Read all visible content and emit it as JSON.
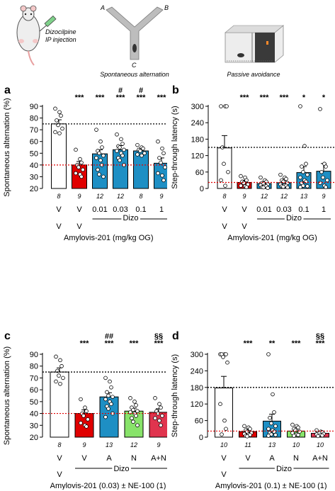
{
  "header": {
    "injection_label_line1": "Dizocilpine",
    "injection_label_line2": "IP injection",
    "maze_arm_a": "A",
    "maze_arm_b": "B",
    "maze_arm_c": "C",
    "maze_caption": "Spontaneous alternation",
    "box_caption": "Passive avoidance"
  },
  "colors": {
    "white_bar": "#ffffff",
    "red_bar": "#e00000",
    "blue_bar": "#1e8fc4",
    "green_bar": "#88e36a",
    "pink_bar": "#e0344e",
    "ref_line_red": "#e00000",
    "ref_line_black": "#000000"
  },
  "chart_data": [
    {
      "panel_label": "a",
      "type": "bar",
      "ylabel": "Spontaneous alternation (%)",
      "ylim": [
        20,
        90
      ],
      "yticks": [
        20,
        30,
        40,
        50,
        60,
        70,
        80,
        90
      ],
      "ref_black": 75,
      "ref_red": 40,
      "categories": [
        "V",
        "V",
        "0.01",
        "0.03",
        "0.1",
        "1"
      ],
      "top_row": [
        "V",
        "V",
        "",
        "",
        "",
        ""
      ],
      "n": [
        "8",
        "9",
        "12",
        "12",
        "8",
        "9"
      ],
      "values": [
        75,
        40,
        49.5,
        53,
        52,
        41.5
      ],
      "errors": [
        3.5,
        3,
        3.5,
        3.5,
        2,
        4.5
      ],
      "colors": [
        "white_bar",
        "red_bar",
        "blue_bar",
        "blue_bar",
        "blue_bar",
        "blue_bar"
      ],
      "sig_line1": [
        "",
        "",
        "",
        "#",
        "#",
        ""
      ],
      "sig_line2": [
        "",
        "***",
        "***",
        "***",
        "***",
        "***"
      ],
      "points": [
        [
          88,
          85,
          82,
          78,
          74,
          71,
          68,
          67
        ],
        [
          53,
          45,
          42,
          40,
          38,
          36,
          33,
          32,
          30
        ],
        [
          70,
          60,
          55,
          52,
          50,
          48,
          46,
          44,
          40,
          36,
          32,
          30
        ],
        [
          66,
          62,
          58,
          56,
          55,
          53,
          52,
          50,
          48,
          46,
          44,
          40
        ],
        [
          57,
          55,
          54,
          53,
          52,
          50,
          49,
          48
        ],
        [
          60,
          54,
          50,
          46,
          42,
          38,
          33,
          31,
          27
        ]
      ],
      "group_label": "Dizo",
      "axis_title": "Amylovis-201 (mg/kg OG)"
    },
    {
      "panel_label": "b",
      "type": "bar",
      "ylabel": "Step-through latency (s)",
      "ylim": [
        0,
        300
      ],
      "yticks": [
        0,
        60,
        120,
        180,
        240,
        300
      ],
      "ref_black": 150,
      "ref_red": 22,
      "categories": [
        "V",
        "V",
        "0.01",
        "0.03",
        "0.1",
        "1"
      ],
      "top_row": [
        "V",
        "V",
        "",
        "",
        "",
        ""
      ],
      "n": [
        "8",
        "9",
        "12",
        "12",
        "13",
        "9"
      ],
      "values": [
        148,
        22,
        18,
        21,
        58,
        63
      ],
      "errors": [
        45,
        8,
        6,
        7,
        22,
        28
      ],
      "colors": [
        "white_bar",
        "red_bar",
        "blue_bar",
        "blue_bar",
        "blue_bar",
        "blue_bar"
      ],
      "sig_line1": [
        "",
        "",
        "",
        "",
        "",
        ""
      ],
      "sig_line2": [
        "",
        "***",
        "***",
        "***",
        "*",
        "*"
      ],
      "points": [
        [
          300,
          300,
          300,
          150,
          90,
          60,
          30,
          10
        ],
        [
          45,
          40,
          30,
          25,
          20,
          15,
          10,
          8,
          5
        ],
        [
          40,
          30,
          25,
          20,
          18,
          15,
          12,
          10,
          8,
          5,
          4,
          2
        ],
        [
          50,
          40,
          35,
          30,
          25,
          20,
          15,
          12,
          10,
          8,
          6,
          4
        ],
        [
          300,
          155,
          90,
          80,
          60,
          50,
          40,
          30,
          25,
          20,
          10,
          8,
          5
        ],
        [
          290,
          90,
          80,
          60,
          40,
          30,
          20,
          10,
          5
        ]
      ],
      "group_label": "Dizo",
      "axis_title": "Amylovis-201 (mg/kg OG)"
    },
    {
      "panel_label": "c",
      "type": "bar",
      "ylabel": "Spontaneous alternation (%)",
      "ylim": [
        20,
        90
      ],
      "yticks": [
        20,
        30,
        40,
        50,
        60,
        70,
        80,
        90
      ],
      "ref_black": 75,
      "ref_red": 40,
      "categories": [
        "V",
        "V",
        "A",
        "N",
        "A+N"
      ],
      "top_row": [
        "V",
        "",
        "",
        "",
        ""
      ],
      "n": [
        "8",
        "9",
        "13",
        "12",
        "9"
      ],
      "values": [
        75,
        40,
        54,
        42,
        41
      ],
      "errors": [
        3.5,
        3,
        3.5,
        2.5,
        3
      ],
      "colors": [
        "white_bar",
        "red_bar",
        "blue_bar",
        "green_bar",
        "pink_bar"
      ],
      "sig_line1": [
        "",
        "",
        "##",
        "",
        "§§"
      ],
      "sig_line2": [
        "",
        "***",
        "***",
        "***",
        "***"
      ],
      "points": [
        [
          88,
          85,
          80,
          76,
          72,
          70,
          67,
          65
        ],
        [
          52,
          45,
          42,
          40,
          38,
          35,
          32,
          30,
          29
        ],
        [
          70,
          67,
          62,
          58,
          55,
          54,
          52,
          50,
          48,
          46,
          44,
          40,
          37
        ],
        [
          53,
          50,
          47,
          45,
          43,
          42,
          41,
          40,
          38,
          36,
          33,
          30
        ],
        [
          53,
          48,
          45,
          42,
          40,
          38,
          36,
          34,
          30
        ]
      ],
      "group_label": "Dizo",
      "axis_title": "Amylovis-201 (0.03) ± NE-100 (1)"
    },
    {
      "panel_label": "d",
      "type": "bar",
      "ylabel": "Step-through latency (s)",
      "ylim": [
        0,
        300
      ],
      "yticks": [
        0,
        60,
        120,
        180,
        240,
        300
      ],
      "ref_black": 180,
      "ref_red": 22,
      "categories": [
        "V",
        "V",
        "A",
        "N",
        "A+N"
      ],
      "top_row": [
        "V",
        "",
        "",
        "",
        ""
      ],
      "n": [
        "10",
        "11",
        "13",
        "10",
        "10"
      ],
      "values": [
        178,
        20,
        58,
        22,
        14
      ],
      "errors": [
        42,
        6,
        25,
        7,
        4
      ],
      "colors": [
        "white_bar",
        "red_bar",
        "blue_bar",
        "green_bar",
        "pink_bar"
      ],
      "sig_line1": [
        "",
        "",
        "",
        "",
        "§§"
      ],
      "sig_line2": [
        "",
        "***",
        "**",
        "***",
        "***"
      ],
      "points": [
        [
          300,
          300,
          300,
          300,
          290,
          270,
          120,
          60,
          30,
          10
        ],
        [
          40,
          35,
          30,
          25,
          20,
          15,
          12,
          10,
          8,
          5,
          3
        ],
        [
          300,
          155,
          90,
          70,
          50,
          40,
          30,
          25,
          20,
          15,
          10,
          8,
          5
        ],
        [
          45,
          40,
          35,
          30,
          25,
          20,
          15,
          10,
          8,
          5
        ],
        [
          25,
          20,
          18,
          15,
          14,
          12,
          10,
          8,
          6,
          4
        ]
      ],
      "group_label": "Dizo",
      "axis_title": "Amylovis-201 (0.1) ± NE-100 (1)"
    }
  ]
}
